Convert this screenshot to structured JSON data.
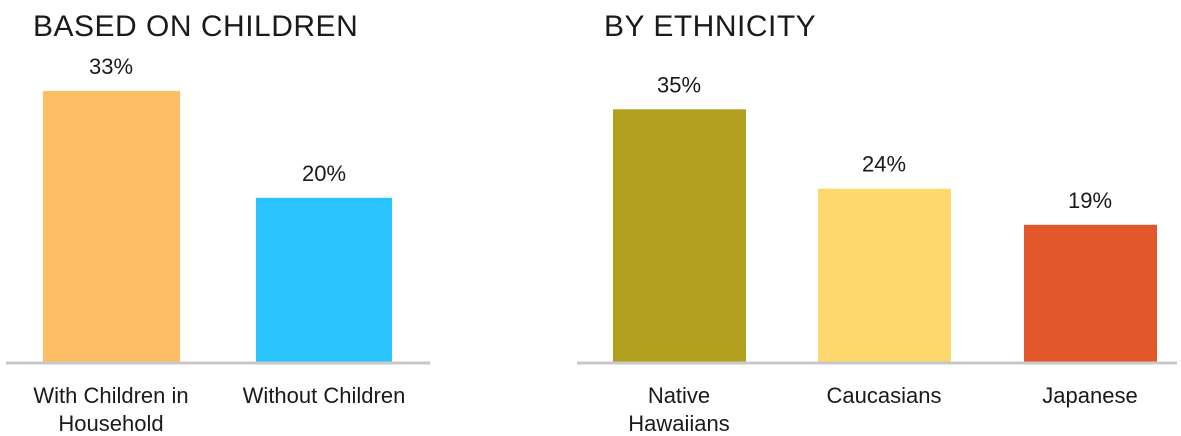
{
  "chart_data": [
    {
      "type": "bar",
      "title": "BASED ON CHILDREN",
      "categories": [
        "With Children in Household",
        "Without Children"
      ],
      "category_lines": [
        [
          "With Children in",
          "Household"
        ],
        [
          "Without Children"
        ]
      ],
      "values": [
        33,
        20
      ],
      "value_labels": [
        "33%",
        "20%"
      ],
      "colors": [
        "#FDBE63",
        "#29C3FD"
      ],
      "xlabel": "",
      "ylabel": "",
      "ylim": [
        0,
        40
      ],
      "grid": false,
      "legend": "none"
    },
    {
      "type": "bar",
      "title": "BY ETHNICITY",
      "categories": [
        "Native Hawaiians",
        "Caucasians",
        "Japanese"
      ],
      "category_lines": [
        [
          "Native",
          "Hawaiians"
        ],
        [
          "Caucasians"
        ],
        [
          "Japanese"
        ]
      ],
      "values": [
        35,
        24,
        19
      ],
      "value_labels": [
        "35%",
        "24%",
        "19%"
      ],
      "colors": [
        "#B19F1E",
        "#FDD96D",
        "#E1572A"
      ],
      "xlabel": "",
      "ylabel": "",
      "ylim": [
        0,
        40
      ],
      "grid": false,
      "legend": "none"
    }
  ],
  "axis_color": "#C8C8C8"
}
